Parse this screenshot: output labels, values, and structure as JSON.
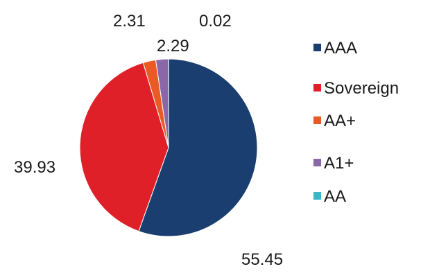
{
  "chart_data": {
    "type": "pie",
    "title": "",
    "slices": [
      {
        "label": "AAA",
        "value": 55.45,
        "display": "55.45",
        "color": "#1a3e6f"
      },
      {
        "label": "Sovereign",
        "value": 39.93,
        "display": "39.93",
        "color": "#e02028"
      },
      {
        "label": "AA+",
        "value": 2.31,
        "display": "2.31",
        "color": "#ea5a24"
      },
      {
        "label": "A1+",
        "value": 2.29,
        "display": "2.29",
        "color": "#8a68a8"
      },
      {
        "label": "AA",
        "value": 0.02,
        "display": "0.02",
        "color": "#3cb7c6"
      }
    ],
    "legend": {
      "placement": "right"
    },
    "start_angle_deg": 0,
    "direction": "clockwise"
  }
}
